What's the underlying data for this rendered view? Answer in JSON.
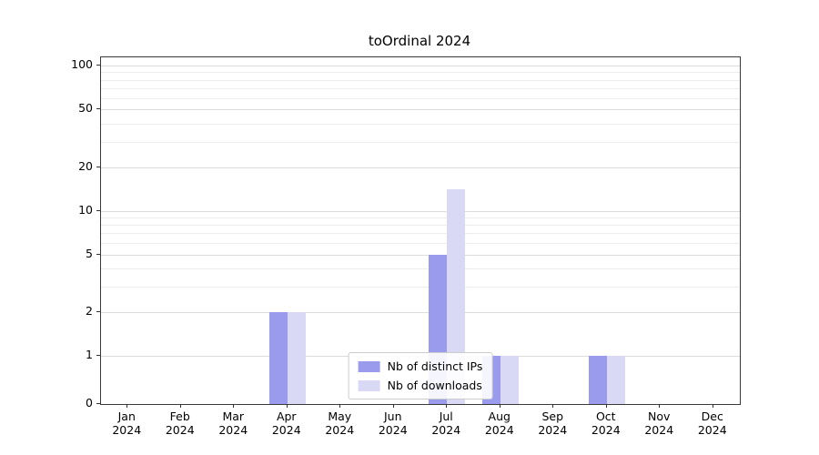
{
  "chart_data": {
    "type": "bar",
    "title": "toOrdinal 2024",
    "categories": [
      "Jan",
      "Feb",
      "Mar",
      "Apr",
      "May",
      "Jun",
      "Jul",
      "Aug",
      "Sep",
      "Oct",
      "Nov",
      "Dec"
    ],
    "year_label": "2024",
    "series": [
      {
        "name": "Nb of distinct IPs",
        "color": "#9b9bee",
        "values": [
          0,
          0,
          0,
          2,
          0,
          0,
          5,
          1,
          0,
          1,
          0,
          0
        ]
      },
      {
        "name": "Nb of downloads",
        "color": "#d9d9f6",
        "values": [
          0,
          0,
          0,
          2,
          0,
          0,
          14,
          1,
          0,
          1,
          0,
          0
        ]
      }
    ],
    "y_ticks": [
      0,
      1,
      2,
      5,
      10,
      20,
      50,
      100
    ],
    "y_minor_gridlines": [
      3,
      4,
      6,
      7,
      8,
      9,
      30,
      40,
      60,
      70,
      80,
      90
    ],
    "scale": "symlog",
    "ylim": [
      0,
      115
    ],
    "grid": true,
    "legend_position": "lower center"
  }
}
